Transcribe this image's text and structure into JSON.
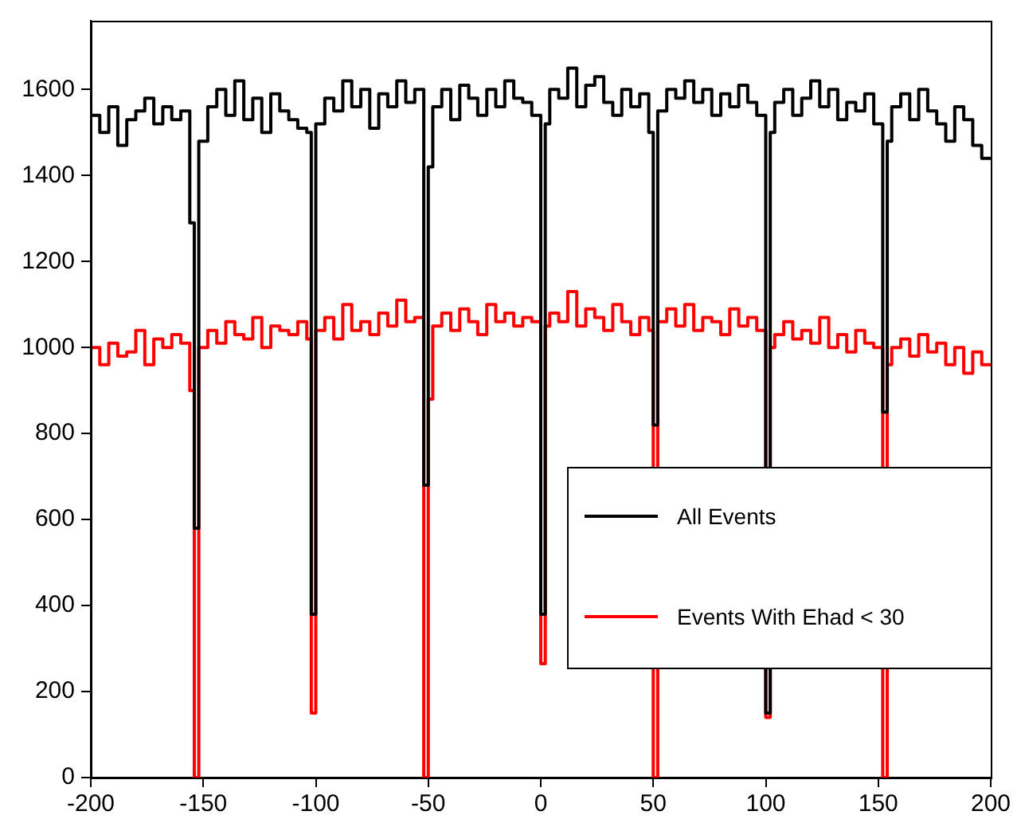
{
  "chart_data": {
    "type": "histogram",
    "bins": [
      -200,
      -196,
      -192,
      -188,
      -184,
      -180,
      -176,
      -172,
      -168,
      -164,
      -160,
      -156,
      -154,
      -152,
      -148,
      -144,
      -140,
      -136,
      -132,
      -128,
      -124,
      -120,
      -116,
      -112,
      -108,
      -104,
      -102,
      -100,
      -96,
      -92,
      -88,
      -84,
      -80,
      -76,
      -72,
      -68,
      -64,
      -60,
      -56,
      -52,
      -50,
      -48,
      -44,
      -40,
      -36,
      -32,
      -28,
      -24,
      -20,
      -16,
      -12,
      -8,
      -4,
      0,
      2,
      4,
      8,
      12,
      16,
      20,
      24,
      28,
      32,
      36,
      40,
      44,
      48,
      50,
      52,
      56,
      60,
      64,
      68,
      72,
      76,
      80,
      84,
      88,
      92,
      96,
      100,
      102,
      104,
      108,
      112,
      116,
      120,
      124,
      128,
      132,
      136,
      140,
      144,
      148,
      152,
      154,
      156,
      160,
      164,
      168,
      172,
      176,
      180,
      184,
      188,
      192,
      196,
      200
    ],
    "series": [
      {
        "name": "All Events",
        "color": "#000000",
        "values": [
          1540,
          1500,
          1560,
          1470,
          1530,
          1550,
          1580,
          1520,
          1560,
          1530,
          1550,
          1290,
          580,
          1480,
          1560,
          1600,
          1540,
          1620,
          1530,
          1580,
          1500,
          1590,
          1550,
          1530,
          1510,
          1500,
          380,
          1520,
          1580,
          1550,
          1620,
          1560,
          1600,
          1510,
          1590,
          1560,
          1620,
          1570,
          1600,
          680,
          1420,
          1560,
          1600,
          1530,
          1610,
          1580,
          1540,
          1600,
          1560,
          1620,
          1580,
          1570,
          1540,
          380,
          1520,
          1600,
          1580,
          1650,
          1560,
          1610,
          1630,
          1570,
          1540,
          1600,
          1560,
          1590,
          1500,
          820,
          1550,
          1600,
          1580,
          1620,
          1570,
          1600,
          1540,
          1590,
          1560,
          1610,
          1570,
          1540,
          150,
          1500,
          1570,
          1600,
          1540,
          1580,
          1620,
          1560,
          1600,
          1530,
          1570,
          1550,
          1590,
          1520,
          850,
          1480,
          1560,
          1590,
          1530,
          1600,
          1550,
          1520,
          1480,
          1560,
          1530,
          1470,
          1440
        ]
      },
      {
        "name": "Events With Ehad < 30",
        "color": "#ff0000",
        "values": [
          1000,
          960,
          1010,
          980,
          990,
          1040,
          960,
          1020,
          1000,
          1030,
          1010,
          900,
          0,
          1000,
          1040,
          1010,
          1060,
          1030,
          1020,
          1070,
          1000,
          1050,
          1040,
          1030,
          1060,
          1020,
          150,
          1040,
          1070,
          1020,
          1100,
          1040,
          1060,
          1030,
          1080,
          1050,
          1110,
          1060,
          1070,
          0,
          880,
          1050,
          1080,
          1040,
          1090,
          1060,
          1030,
          1100,
          1060,
          1080,
          1050,
          1070,
          1060,
          265,
          1050,
          1080,
          1060,
          1130,
          1050,
          1090,
          1070,
          1040,
          1100,
          1060,
          1030,
          1070,
          1040,
          0,
          1060,
          1090,
          1050,
          1100,
          1040,
          1070,
          1060,
          1030,
          1090,
          1050,
          1070,
          1040,
          140,
          1000,
          1030,
          1060,
          1020,
          1040,
          1010,
          1070,
          1000,
          1030,
          990,
          1040,
          1010,
          1000,
          0,
          960,
          1000,
          1020,
          980,
          1030,
          990,
          1010,
          960,
          1000,
          940,
          990,
          960
        ]
      }
    ],
    "xlim": [
      -200,
      200
    ],
    "xticks": [
      -200,
      -150,
      -100,
      -50,
      0,
      50,
      100,
      150,
      200
    ],
    "ylim": [
      0,
      1760
    ],
    "yticks": [
      0,
      200,
      400,
      600,
      800,
      1000,
      1200,
      1400,
      1600
    ],
    "grid": false,
    "legend": "bottom right"
  }
}
